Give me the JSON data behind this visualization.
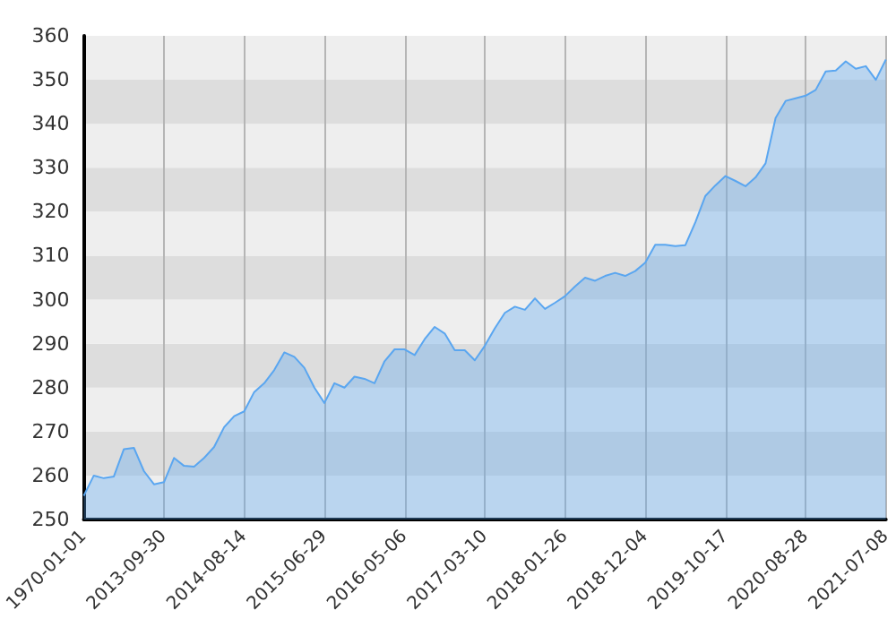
{
  "chart_data": {
    "type": "area",
    "categories": [
      "1970-01-01",
      null,
      null,
      null,
      null,
      null,
      null,
      null,
      "2013-09-30",
      null,
      null,
      null,
      null,
      null,
      null,
      null,
      "2014-08-14",
      null,
      null,
      null,
      null,
      null,
      null,
      null,
      "2015-06-29",
      null,
      null,
      null,
      null,
      null,
      null,
      null,
      "2016-05-06",
      null,
      null,
      null,
      null,
      null,
      null,
      null,
      "2017-03-10",
      null,
      null,
      null,
      null,
      null,
      null,
      null,
      "2018-01-26",
      null,
      null,
      null,
      null,
      null,
      null,
      null,
      "2018-12-04",
      null,
      null,
      null,
      null,
      null,
      null,
      null,
      "2019-10-17",
      null,
      null,
      null,
      null,
      null,
      null,
      null,
      "2020-08-28",
      null,
      null,
      null,
      null,
      null,
      null,
      null,
      "2021-07-08"
    ],
    "series": [
      {
        "color": "#5aa6f0",
        "values": [
          255.4,
          260,
          259.4,
          259.8,
          266,
          266.3,
          261,
          258,
          258.5,
          264,
          262.2,
          262,
          264,
          266.5,
          271,
          273.5,
          274.6,
          279,
          281,
          284,
          288,
          287,
          284.5,
          280,
          276.5,
          281,
          280,
          282.5,
          282,
          281,
          286,
          288.7,
          288.7,
          287.4,
          291,
          293.8,
          292.3,
          288.5,
          288.5,
          286.2,
          289.5,
          293.5,
          297,
          298.4,
          297.7,
          300.3,
          297.9,
          299.3,
          300.8,
          303,
          305,
          304.3,
          305.4,
          306.1,
          305.4,
          306.5,
          308.4,
          312.5,
          312.5,
          312.2,
          312.4,
          317.6,
          323.6,
          326,
          328.1,
          327,
          325.8,
          327.8,
          331,
          341.3,
          345.2,
          345.8,
          346.4,
          347.7,
          351.9,
          352.1,
          354.2,
          352.5,
          353.1,
          350,
          354.6
        ]
      }
    ],
    "ylim": [
      250,
      360
    ],
    "yticks": [
      250,
      260,
      270,
      280,
      290,
      300,
      310,
      320,
      330,
      340,
      350,
      360
    ],
    "grid": true,
    "marker": "none"
  }
}
